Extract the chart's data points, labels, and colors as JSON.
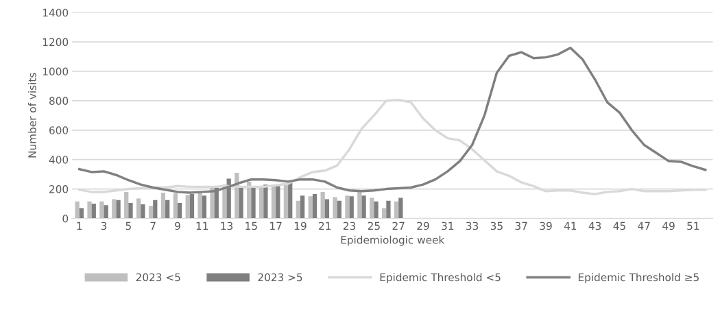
{
  "chart_data": {
    "type": "bar",
    "xlabel": "Epidemiologic week",
    "ylabel": "Number of visits",
    "categories": [
      "1",
      null,
      "3",
      null,
      "5",
      null,
      "7",
      null,
      "9",
      null,
      "11",
      null,
      "13",
      null,
      "15",
      null,
      "17",
      null,
      "19",
      null,
      "21",
      null,
      "23",
      null,
      "25",
      null,
      "27",
      null,
      "29",
      null,
      "31",
      null,
      "33",
      null,
      "35",
      null,
      "37",
      null,
      "39",
      null,
      "41",
      null,
      "43",
      null,
      "45",
      null,
      "47",
      null,
      "49",
      null,
      "51",
      null
    ],
    "series": [
      {
        "name": "2023 <5",
        "color": "#bfbfbf",
        "values": [
          115,
          115,
          115,
          130,
          180,
          135,
          85,
          175,
          170,
          160,
          175,
          220,
          230,
          310,
          250,
          220,
          230,
          230,
          120,
          150,
          180,
          145,
          155,
          190,
          140,
          70,
          115,
          null,
          null,
          null,
          null,
          null,
          null,
          null,
          null,
          null,
          null,
          null,
          null,
          null,
          null,
          null,
          null,
          null,
          null,
          null,
          null,
          null,
          null,
          null,
          null,
          null
        ]
      },
      {
        "name": "2023 >5",
        "color": "#7f7f7f",
        "values": [
          70,
          100,
          90,
          125,
          105,
          95,
          125,
          125,
          105,
          165,
          155,
          210,
          270,
          220,
          215,
          230,
          220,
          255,
          155,
          165,
          130,
          120,
          150,
          155,
          115,
          120,
          140,
          null,
          null,
          null,
          null,
          null,
          null,
          null,
          null,
          null,
          null,
          null,
          null,
          null,
          null,
          null,
          null,
          null,
          null,
          null,
          null,
          null,
          null,
          null,
          null,
          null
        ]
      },
      {
        "name": "Epidemic Threshold <5",
        "type": "line",
        "color": "#d9d9d9",
        "values": [
          195,
          180,
          180,
          190,
          200,
          205,
          210,
          210,
          220,
          215,
          215,
          215,
          220,
          215,
          215,
          215,
          225,
          235,
          280,
          315,
          325,
          360,
          470,
          610,
          700,
          800,
          805,
          790,
          680,
          600,
          545,
          530,
          470,
          395,
          320,
          290,
          245,
          220,
          185,
          190,
          190,
          175,
          165,
          180,
          185,
          200,
          185,
          185,
          185,
          190,
          195,
          195
        ]
      },
      {
        "name": "Epidemic Threshold ≥5",
        "type": "line",
        "color": "#808080",
        "values": [
          335,
          315,
          320,
          295,
          260,
          230,
          210,
          195,
          180,
          175,
          180,
          185,
          210,
          240,
          265,
          265,
          260,
          250,
          265,
          265,
          250,
          210,
          190,
          185,
          190,
          200,
          205,
          210,
          230,
          265,
          320,
          390,
          500,
          700,
          990,
          1105,
          1130,
          1090,
          1095,
          1115,
          1160,
          1080,
          945,
          790,
          720,
          600,
          500,
          445,
          390,
          385,
          355,
          330
        ]
      }
    ],
    "ylim": [
      0,
      1400
    ],
    "yticks": [
      0,
      200,
      400,
      600,
      800,
      1000,
      1200,
      1400
    ],
    "grid": "y",
    "legend": "bottom",
    "marker": "none",
    "line_style": "solid"
  }
}
